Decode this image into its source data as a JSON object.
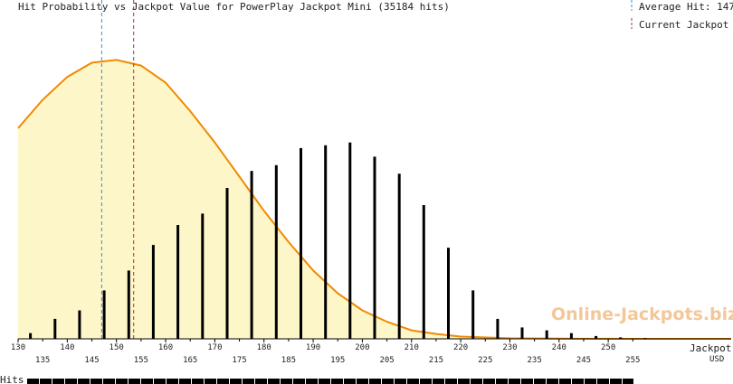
{
  "chart_data": {
    "type": "bar",
    "title": "Hit Probability vs Jackpot Value for PowerPlay Jackpot Mini (35184 hits)",
    "legend": {
      "average_label": "Average Hit: 147",
      "current_label": "Current Jackpot",
      "placement": "top-right"
    },
    "xlabel": "Jackpot,",
    "xunit": "USD",
    "ylabel": "Hits",
    "xlim": [
      130,
      275
    ],
    "x_ticks_upper": [
      "130",
      "140",
      "150",
      "160",
      "170",
      "180",
      "190",
      "200",
      "210",
      "220",
      "230",
      "240",
      "250"
    ],
    "x_ticks_lower": [
      "135",
      "145",
      "155",
      "165",
      "175",
      "185",
      "195",
      "205",
      "215",
      "225",
      "235",
      "245",
      "255"
    ],
    "average_hit": 147,
    "current_jackpot": 153.5,
    "watermark": "Online-Jackpots.biz",
    "colors": {
      "average_line": "#3a8fd6",
      "current_line": "#b0303a",
      "curve": "#f08a00",
      "curve_fill": "#fdf6c8",
      "bars": "#000000",
      "watermark": "#f4c79a"
    },
    "bars": {
      "x": [
        132.5,
        137.5,
        142.5,
        147.5,
        152.5,
        157.5,
        162.5,
        167.5,
        172.5,
        177.5,
        182.5,
        187.5,
        192.5,
        197.5,
        202.5,
        207.5,
        212.5,
        217.5,
        222.5,
        227.5,
        232.5,
        237.5,
        242.5,
        247.5,
        252.5,
        257.5
      ],
      "values": [
        2,
        7,
        10,
        17,
        24,
        33,
        40,
        44,
        53,
        59,
        61,
        67,
        68,
        69,
        64,
        58,
        47,
        32,
        17,
        7,
        4,
        3,
        2,
        1,
        0.5,
        0.3
      ]
    },
    "curve": {
      "x": [
        130,
        135,
        140,
        145,
        150,
        155,
        160,
        165,
        170,
        175,
        180,
        185,
        190,
        195,
        200,
        205,
        210,
        215,
        220,
        230,
        240,
        260,
        275
      ],
      "values": [
        74,
        84,
        92,
        97,
        98,
        96,
        90,
        80,
        69,
        57,
        45,
        34,
        24,
        16,
        10,
        6,
        3,
        1.7,
        0.8,
        0.2,
        0.05,
        0,
        0
      ]
    },
    "ylim": [
      0,
      100
    ]
  }
}
